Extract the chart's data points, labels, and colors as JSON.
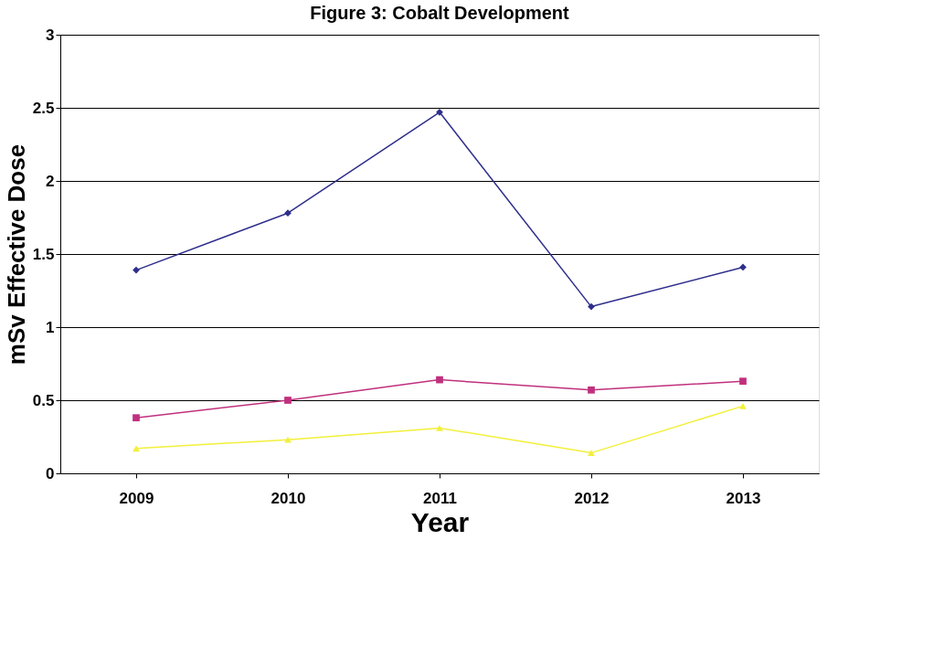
{
  "chart_data": {
    "type": "line",
    "title": "Figure 3:  Cobalt Development",
    "xlabel": "Year",
    "ylabel": "mSv Effective Dose",
    "categories": [
      "2009",
      "2010",
      "2011",
      "2012",
      "2013"
    ],
    "series": [
      {
        "color": "#2e2e8c",
        "marker": "diamond",
        "values": [
          1.39,
          1.78,
          2.47,
          1.14,
          1.41
        ]
      },
      {
        "color": "#c0307e",
        "marker": "square",
        "values": [
          0.38,
          0.5,
          0.64,
          0.57,
          0.63
        ]
      },
      {
        "color": "#f2f03a",
        "marker": "triangle",
        "values": [
          0.17,
          0.23,
          0.31,
          0.14,
          0.46
        ]
      }
    ],
    "ylim": [
      0,
      3
    ],
    "yticks": [
      0,
      0.5,
      1,
      1.5,
      2,
      2.5,
      3
    ],
    "grid": "y",
    "line_style": "solid"
  }
}
